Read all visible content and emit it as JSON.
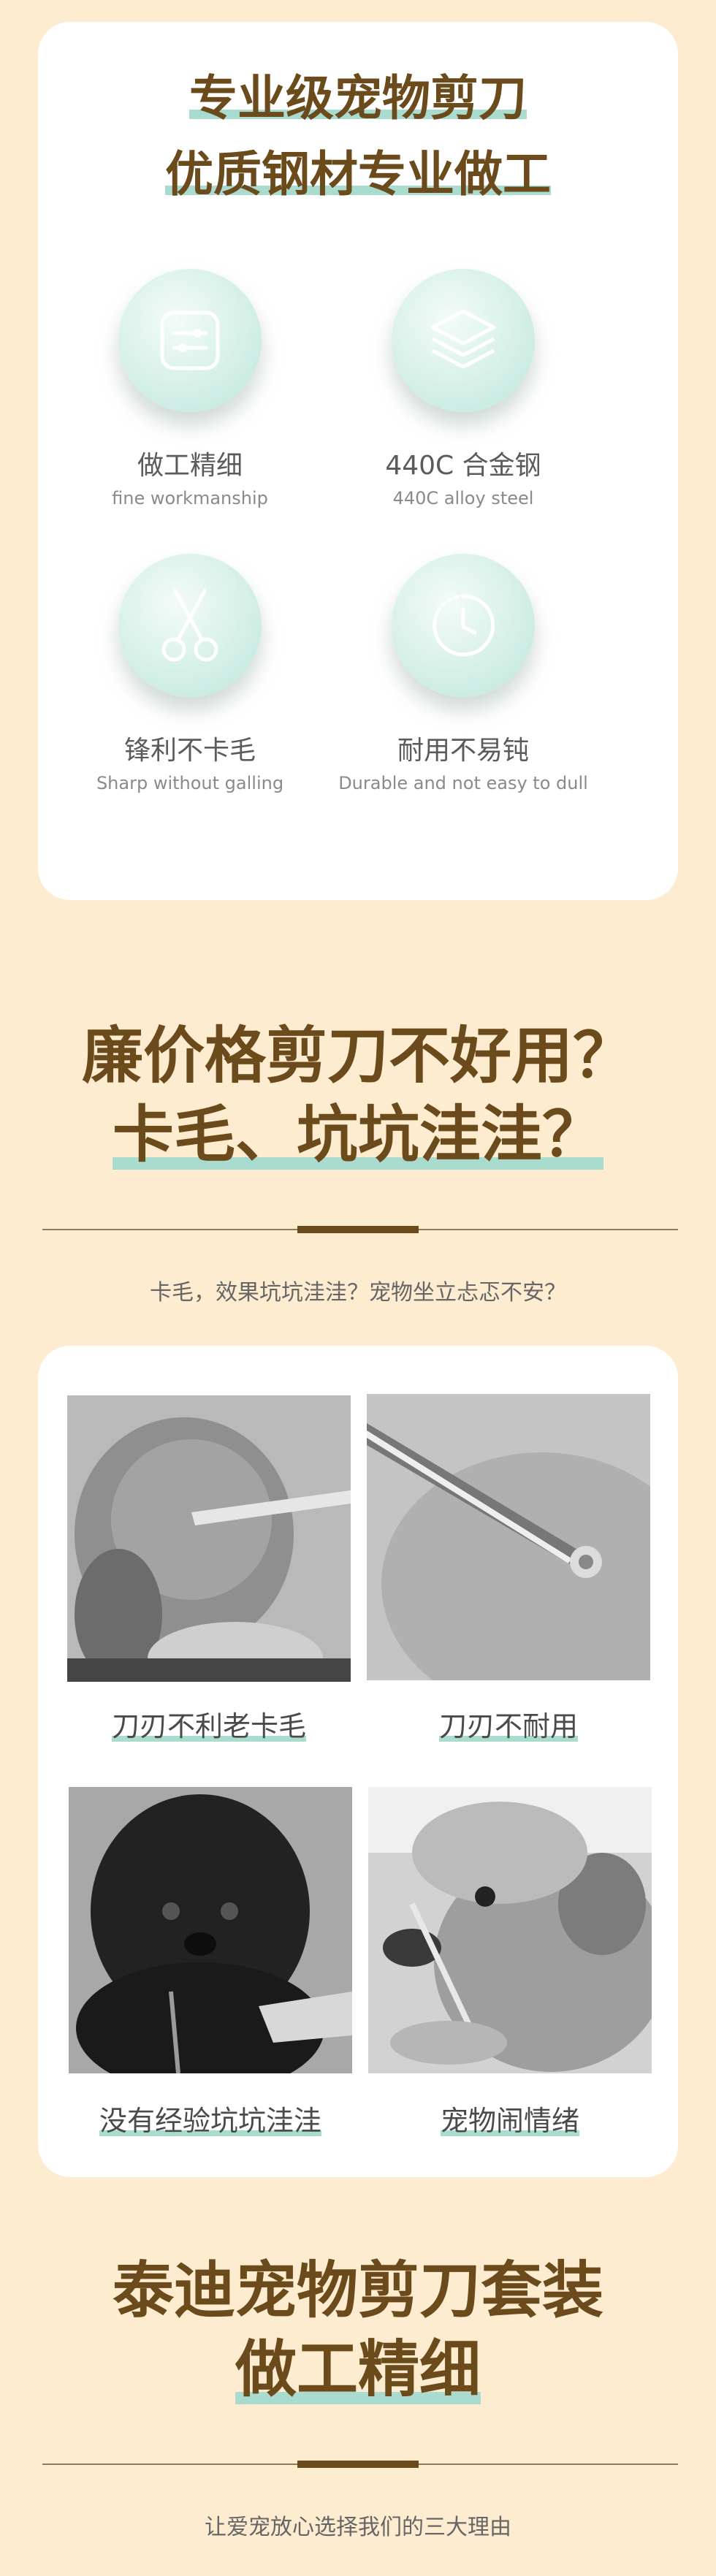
{
  "card1": {
    "title_line1": "专业级宠物剪刀",
    "title_line2": "优质钢材专业做工",
    "features": [
      {
        "icon": "adjust-sliders-icon",
        "cn": "做工精细",
        "en": "fine workmanship"
      },
      {
        "icon": "layers-icon",
        "cn": "440C 合金钢",
        "en": "440C alloy steel"
      },
      {
        "icon": "scissors-icon",
        "cn": "锋利不卡毛",
        "en": "Sharp without galling"
      },
      {
        "icon": "clock-icon",
        "cn": "耐用不易钝",
        "en": "Durable and not easy to dull"
      }
    ]
  },
  "section2": {
    "line1": "廉价格剪刀不好用？",
    "line2": "卡毛、坑坑洼洼？",
    "subtitle": "卡毛，效果坑坑洼洼？宠物坐立忐忑不安？"
  },
  "problems": [
    {
      "image": "poodle-trim-photo",
      "caption": "刀刃不利老卡毛"
    },
    {
      "image": "thinning-shears-photo",
      "caption": "刀刃不耐用"
    },
    {
      "image": "black-poodle-photo",
      "caption": "没有经验坑坑洼洼"
    },
    {
      "image": "dog-grooming-photo",
      "caption": "宠物闹情绪"
    }
  ],
  "section3": {
    "line1": "泰迪宠物剪刀套装",
    "line2": "做工精细",
    "subtitle": "让爱宠放心选择我们的三大理由"
  },
  "colors": {
    "background": "#fdecd0",
    "title": "#6b4a1c",
    "highlight": "#a9dccf",
    "card": "#ffffff"
  }
}
